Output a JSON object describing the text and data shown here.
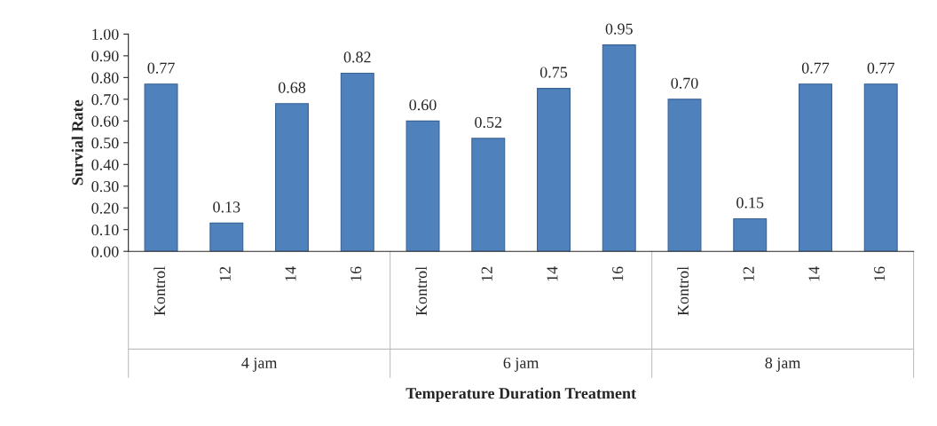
{
  "chart_data": {
    "type": "bar",
    "xlabel": "Temperature Duration Treatment",
    "ylabel": "Survial Rate",
    "categories": [
      "Kontrol",
      "12",
      "14",
      "16",
      "Kontrol",
      "12",
      "14",
      "16",
      "Kontrol",
      "12",
      "14",
      "16"
    ],
    "values": [
      0.77,
      0.13,
      0.68,
      0.82,
      0.6,
      0.52,
      0.75,
      0.95,
      0.7,
      0.15,
      0.77,
      0.77
    ],
    "color": "#4f81bd",
    "value_labels": [
      "0.77",
      "0.13",
      "0.68",
      "0.82",
      "0.60",
      "0.52",
      "0.75",
      "0.95",
      "0.70",
      "0.15",
      "0.77",
      "0.77"
    ],
    "grid": false,
    "legend": false,
    "ylim": [
      0,
      1
    ],
    "yticks": [
      {
        "value": 0,
        "label": "0.00"
      },
      {
        "value": 0.1,
        "label": "0.10"
      },
      {
        "value": 0.2,
        "label": "0.20"
      },
      {
        "value": 0.3,
        "label": "0.30"
      },
      {
        "value": 0.4,
        "label": "0.40"
      },
      {
        "value": 0.5,
        "label": "0.50"
      },
      {
        "value": 0.6,
        "label": "0.60"
      },
      {
        "value": 0.7,
        "label": "0.70"
      },
      {
        "value": 0.8,
        "label": "0.80"
      },
      {
        "value": 0.9,
        "label": "0.90"
      },
      {
        "value": 1,
        "label": "1.00"
      }
    ],
    "annotations": [
      "4 jam",
      "6 jam",
      "8 jam"
    ]
  }
}
